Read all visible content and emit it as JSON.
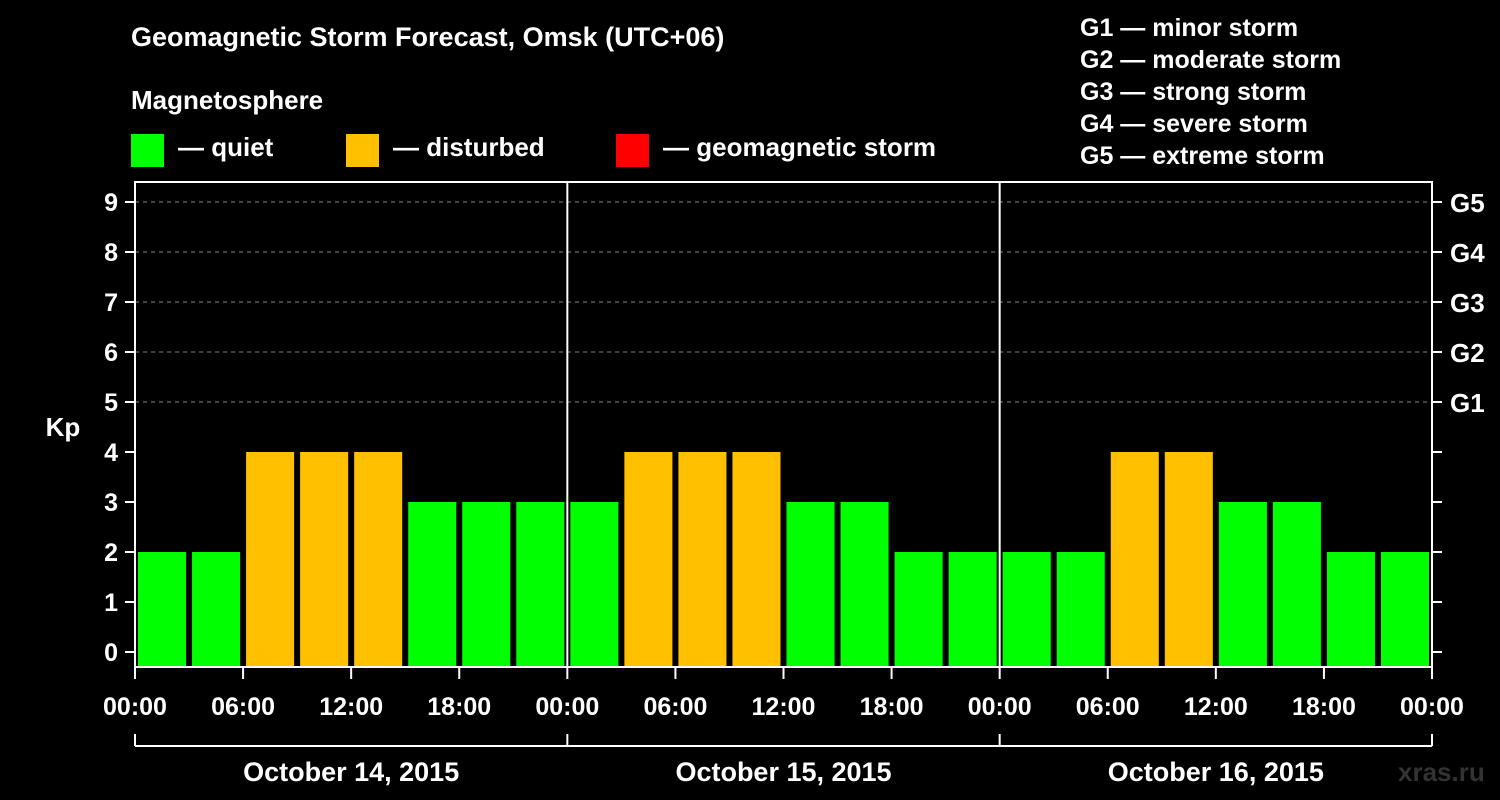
{
  "title": "Geomagnetic Storm Forecast, Omsk (UTC+06)",
  "legend": {
    "heading": "Magnetosphere",
    "items": [
      {
        "label": "— quiet",
        "color": "#00ff00"
      },
      {
        "label": "— disturbed",
        "color": "#ffc000"
      },
      {
        "label": "— geomagnetic storm",
        "color": "#ff0000"
      }
    ]
  },
  "storm_scale": [
    "G1 — minor storm",
    "G2 — moderate storm",
    "G3 — strong storm",
    "G4 — severe storm",
    "G5 — extreme storm"
  ],
  "watermark": "xras.ru",
  "chart_data": {
    "type": "bar",
    "ylabel": "Kp",
    "ylim": [
      0,
      9
    ],
    "yticks": [
      "0",
      "1",
      "2",
      "3",
      "4",
      "5",
      "6",
      "7",
      "8",
      "9"
    ],
    "right_ticks": [
      {
        "value": 5,
        "label": "G1"
      },
      {
        "value": 6,
        "label": "G2"
      },
      {
        "value": 7,
        "label": "G3"
      },
      {
        "value": 8,
        "label": "G4"
      },
      {
        "value": 9,
        "label": "G5"
      }
    ],
    "xtick_labels": [
      "00:00",
      "06:00",
      "12:00",
      "18:00",
      "00:00",
      "06:00",
      "12:00",
      "18:00",
      "00:00",
      "06:00",
      "12:00",
      "18:00",
      "00:00"
    ],
    "days": [
      "October 14, 2015",
      "October 15, 2015",
      "October 16, 2015"
    ],
    "values": [
      2,
      2,
      4,
      4,
      4,
      3,
      3,
      3,
      3,
      4,
      4,
      4,
      3,
      3,
      2,
      2,
      2,
      2,
      4,
      4,
      3,
      3,
      2,
      2
    ],
    "thresholds": {
      "disturbed": 4,
      "storm": 5
    },
    "colors": {
      "quiet": "#00ff00",
      "disturbed": "#ffc000",
      "storm": "#ff0000"
    },
    "grid": true
  }
}
